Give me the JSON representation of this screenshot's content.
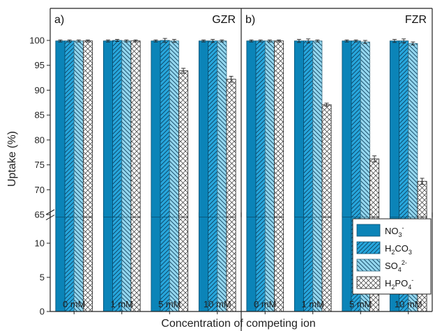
{
  "chart_data": {
    "type": "bar",
    "ylabel": "Uptake (%)",
    "xlabel": "Concentration of competing ion",
    "y_axis_break": [
      14.5,
      64.5
    ],
    "ylim_lower": [
      0,
      14.5
    ],
    "ylim_upper": [
      64.5,
      101.5
    ],
    "ticks_lower": [
      0,
      5,
      10
    ],
    "ticks_upper": [
      65,
      70,
      75,
      80,
      85,
      90,
      95,
      100
    ],
    "categories": [
      "0 mM",
      "1 mM",
      "5 mM",
      "10 mM"
    ],
    "series_styles": [
      {
        "color": "#0b84b8",
        "pattern": "solid"
      },
      {
        "color": "#27a6dc",
        "pattern": "hatch-right"
      },
      {
        "color": "#93d6ee",
        "pattern": "hatch-left"
      },
      {
        "color": "#ffffff",
        "pattern": "crosshatch"
      }
    ],
    "legend": {
      "position": "bottom-right",
      "entries": [
        {
          "base": "NO",
          "sub": "3",
          "sup": "-"
        },
        {
          "base": "H",
          "sub": "2",
          "mid": "CO",
          "sub2": "3"
        },
        {
          "base": "SO",
          "sub": "4",
          "sup": "2-"
        },
        {
          "base": "H",
          "sub": "2",
          "mid": "PO",
          "sub2": "4",
          "sup": "-"
        }
      ]
    },
    "panels": [
      {
        "label": "a)",
        "title": "GZR",
        "series": [
          {
            "values": [
              99.9,
              99.9,
              99.9,
              99.9
            ],
            "errors": [
              0.2,
              0.2,
              0.2,
              0.2
            ]
          },
          {
            "values": [
              99.9,
              100.0,
              100.0,
              99.9
            ],
            "errors": [
              0.2,
              0.2,
              0.4,
              0.3
            ]
          },
          {
            "values": [
              99.9,
              99.9,
              99.9,
              99.9
            ],
            "errors": [
              0.2,
              0.2,
              0.3,
              0.2
            ]
          },
          {
            "values": [
              99.9,
              99.9,
              93.9,
              92.2
            ],
            "errors": [
              0.2,
              0.2,
              0.5,
              0.6
            ]
          }
        ]
      },
      {
        "label": "b)",
        "title": "FZR",
        "series": [
          {
            "values": [
              99.9,
              99.9,
              99.9,
              99.9
            ],
            "errors": [
              0.2,
              0.3,
              0.2,
              0.3
            ]
          },
          {
            "values": [
              99.9,
              99.9,
              99.9,
              99.9
            ],
            "errors": [
              0.2,
              0.4,
              0.2,
              0.4
            ]
          },
          {
            "values": [
              99.9,
              99.9,
              99.7,
              99.4
            ],
            "errors": [
              0.2,
              0.2,
              0.3,
              0.3
            ]
          },
          {
            "values": [
              99.9,
              87.1,
              76.2,
              71.7
            ],
            "errors": [
              0.2,
              0.3,
              0.6,
              0.6
            ]
          }
        ]
      }
    ]
  }
}
